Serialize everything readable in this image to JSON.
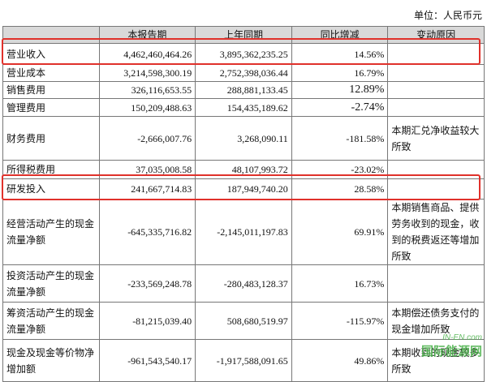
{
  "header": {
    "unit": "单位：人民币元"
  },
  "table": {
    "columns": [
      "本报告期",
      "上年同期",
      "同比增减",
      "变动原因"
    ],
    "rows": [
      [
        "营业收入",
        "4,462,460,464.26",
        "3,895,362,235.25",
        "14.56%"
      ],
      [
        "营业成本",
        "3,214,598,300.19",
        "2,752,398,036.44",
        "16.79%"
      ],
      [
        "销售费用",
        "326,116,653.55",
        "288,881,133.45",
        "12.89%"
      ],
      [
        "管理费用",
        "150,209,488.63",
        "154,435,189.62",
        "-2.74%"
      ],
      [
        "财务费用",
        "-2,666,007.76",
        "3,268,090.11",
        "-181.58%",
        "本期汇兑净收益较大所致"
      ],
      [
        "所得税费用",
        "37,035,008.58",
        "48,107,993.72",
        "-23.02%"
      ],
      [
        "研发投入",
        "241,667,714.83",
        "187,949,740.20",
        "28.58%"
      ],
      [
        "经营活动产生的现金流量净额",
        "-645,335,716.82",
        "-2,145,011,197.83",
        "69.91%",
        "本期销售商品、提供劳务收到的现金，收到的税费返还等增加所致"
      ],
      [
        "投资活动产生的现金流量净额",
        "-233,569,248.78",
        "-280,483,128.37",
        "16.73%"
      ],
      [
        "筹资活动产生的现金流量净额",
        "-81,215,039.40",
        "508,680,519.97",
        "-115.97%",
        "本期偿还债务支付的现金增加所致"
      ],
      [
        "现金及现金等价物净增加额",
        "-961,543,540.17",
        "-1,917,588,091.65",
        "49.86%",
        "本期收到的现金较多所致"
      ]
    ]
  },
  "watermark": {
    "site": "IN-EN.com",
    "name": "国际能源网"
  }
}
